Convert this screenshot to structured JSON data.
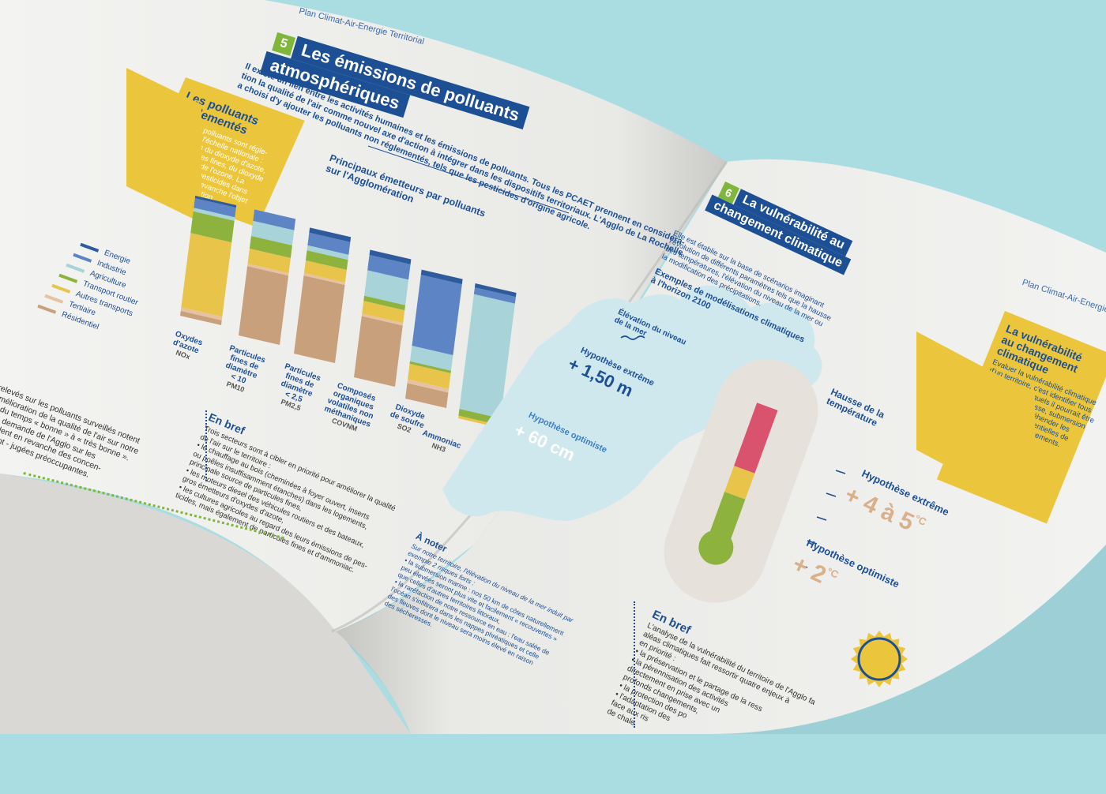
{
  "left_page": {
    "running_header": "Plan Climat-Air-Energie Territorial",
    "section_number": "5",
    "section_title_line1": "Les émissions de polluants",
    "section_title_line2": "atmosphériques",
    "intro_line1": "Il existe un lien entre les activités humaines et les émissions de polluants. Tous les PCAET prennent en considéra-",
    "intro_line2": "tion la qualité de l'air comme nouvel axe d'action à intégrer dans les dispositifs territoriaux. L'Agglo de La Rochelle",
    "intro_line3": "a choisi d'y ajouter les polluants non réglementés, tels que les pesticides d'origine agricole.",
    "sidebox": {
      "title_line1": "Les polluants",
      "title_line2": "réglementés",
      "text_lines": [
        "Certains polluants sont régle-",
        "mentés à l'échelle nationale :",
        "c'est le cas du dioxyde d'azote,",
        "des particules fines, du dioxyde",
        "de soufre et de l'ozone. La",
        "présence de pesticides dans",
        "l'air ne fait en revanche l'objet",
        "d'aucune législation."
      ]
    },
    "chart_title_line1": "Principaux émetteurs par polluants",
    "chart_title_line2": "sur l'Agglomération",
    "en_bref": {
      "title": "En bref",
      "lines": [
        "Trois secteurs sont à cibler en priorité pour améliorer la qualité",
        "de l'air sur le territoire :",
        "• le chauffage au bois (cheminées à foyer ouvert, inserts",
        "ou poêles insuffisamment étanches) dans les logements,",
        "principale source de particules fines,",
        "• les moteurs diesel des véhicules routiers et des bateaux,",
        "gros émetteurs d'oxydes d'azote,",
        "• les cultures agricoles au regard des leurs émissions de pes-",
        "ticides, mais également de particules fines et d'ammoniac."
      ]
    },
    "left_col_lines": [
      "relevés sur les polluants surveillés notent",
      "amélioration de la qualité de l'air sur notre",
      "% du temps « bonne » à « très bonne ».",
      "à la demande de l'Agglo sur les",
      "révèlent en revanche des concen-",
      "mment - jugées préoccupantes."
    ]
  },
  "chart_data": {
    "type": "bar",
    "stacked": true,
    "orientation": "vertical",
    "title": "Principaux émetteurs par polluants sur l'Agglomération",
    "unit": "share of emissions",
    "categories": [
      "Oxydes d'azote NOx",
      "Particules fines de diamètre < 10 PM10",
      "Particules fines de diamètre < 2,5 PM2,5",
      "Composés organiques volatiles non méthaniques COVNM",
      "Dioxyde de soufre SO2",
      "Ammoniac NH3"
    ],
    "category_names": [
      "Oxydes\nd'azote",
      "Particules\nfines de\ndiamètre\n< 10",
      "Particules\nfines de\ndiamètre\n< 2,5",
      "Composés\norganiques\nvolatiles non\nméthaniques",
      "Dioxyde\nde soufre",
      "Ammoniac"
    ],
    "category_codes": [
      "NOx",
      "PM10",
      "PM2,5",
      "COVNM",
      "SO2",
      "NH3"
    ],
    "legend": [
      "Energie",
      "Industrie",
      "Agriculture",
      "Transport routier",
      "Autres transports",
      "Tertiaire",
      "Résidentiel"
    ],
    "series": [
      {
        "name": "Résidentiel",
        "color": "#c9a07c",
        "values": [
          4,
          55,
          62,
          48,
          12,
          0
        ]
      },
      {
        "name": "Tertiaire",
        "color": "#e6c2a0",
        "values": [
          3,
          2,
          2,
          2,
          3,
          0
        ]
      },
      {
        "name": "Autres transports",
        "color": "#e8c54a",
        "values": [
          62,
          12,
          10,
          10,
          12,
          2
        ]
      },
      {
        "name": "Transport routier",
        "color": "#8db33e",
        "values": [
          18,
          10,
          8,
          4,
          2,
          5
        ]
      },
      {
        "name": "Agriculture",
        "color": "#a8d3d9",
        "values": [
          3,
          12,
          4,
          20,
          12,
          85
        ]
      },
      {
        "name": "Industrie",
        "color": "#5d84c4",
        "values": [
          8,
          9,
          10,
          12,
          55,
          5
        ]
      },
      {
        "name": "Energie",
        "color": "#2d5b9c",
        "values": [
          2,
          0,
          4,
          4,
          4,
          3
        ]
      }
    ],
    "ylim": [
      0,
      100
    ]
  },
  "right_page": {
    "running_header": "Plan Climat-Air-Energie",
    "section_number": "6",
    "section_title_line1": "La vulnérabilité au",
    "section_title_line2": "changement climatique",
    "intro_lines": [
      "Elle est établie sur la base de scénarios imaginant",
      "l'évolution de différents paramètres tels que la hausse",
      "des températures, l'élévation du niveau de la mer ou",
      "la modification des précipitations."
    ],
    "models_title_line1": "Exemples de modélisations climatiques",
    "models_title_line2": "à l'horizon 2100",
    "sea": {
      "title_line1": "Élévation du niveau",
      "title_line2": "de la mer",
      "extreme_label": "Hypothèse extrême",
      "extreme_value": "+ 1,50 m",
      "optimist_label": "Hypothèse optimiste",
      "optimist_value": "+ 60 cm"
    },
    "temperature": {
      "title_line1": "Hausse de la",
      "title_line2": "température",
      "extreme_label": "Hypothèse extrême",
      "extreme_value": "+ 4 à 5",
      "optimist_label": "Hypothèse optimiste",
      "optimist_value": "+ 2",
      "unit": "°C"
    },
    "sidebox": {
      "title_line1": "La vulnérabilité",
      "title_line2": "au changement",
      "title_line3": "climatique",
      "text_lines": [
        "Evaluer la vulnérabilité climatique",
        "d'un territoire, c'est identifier tous",
        "les risques auxquels il pourrait être",
        "exposé (sécheresse, submersion",
        "marine...) et appréhender les",
        "conséquences potentielles de",
        "chacun de ces évènements."
      ]
    },
    "a_noter": {
      "title": "À noter",
      "lines": [
        "Sur notre territoire, l'élévation du niveau de la mer induit par",
        "exemple 2 risques forts :",
        "• la submersion marine : nos 50 km de côtes naturellement",
        "peu élevées seront plus vite et facilement « recouvertes »",
        "que celles d'autres territoires littoraux,",
        "• la raréfaction de notre ressource en eau : l'eau salée de",
        "l'océan s'infiltrera dans les nappes phréatiques et celle",
        "des fleuves dont le niveau sera moins élevé en raison",
        "des sécheresses."
      ]
    },
    "en_bref": {
      "title": "En bref",
      "lines": [
        "L'analyse de la vulnérabilité du territoire de l'Agglo fa",
        "aléas climatiques fait ressortir quatre enjeux à",
        "en priorité :",
        "• la préservation et le partage de la ress",
        "• la pérennisation des activités",
        "directement en prise avec un",
        "profonds changements,",
        "• la protection des po",
        "• l'adaptation des",
        "face aux ris",
        "de chale"
      ]
    }
  },
  "colors": {
    "background": "#a9dde2",
    "brand_blue": "#1d4f95",
    "accent_yellow": "#ebc63c",
    "accent_green": "#7fb63c",
    "accent_pink": "#d9536f"
  }
}
